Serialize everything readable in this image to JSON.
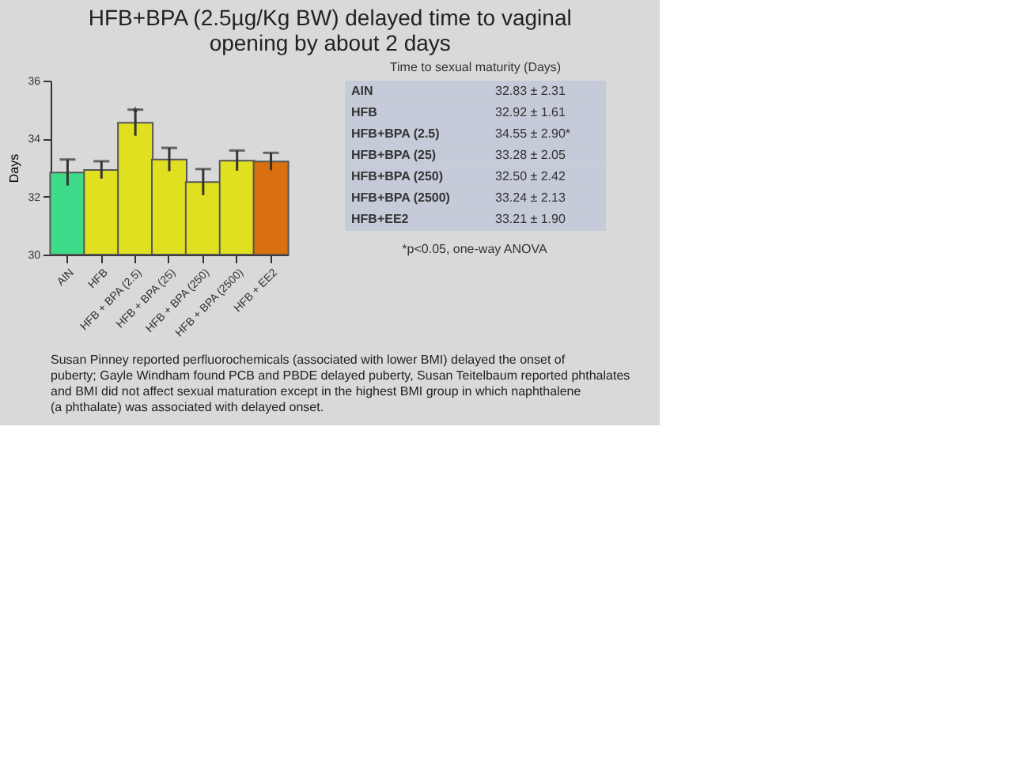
{
  "chart_data": [
    {
      "type": "bar",
      "title": "HFB+BPA (2.5µg/Kg BW) delayed time to vaginal opening by about 2 days",
      "ylabel": "Days",
      "categories": [
        "AIN",
        "HFB",
        "HFB + BPA (2.5)",
        "HFB + BPA (25)",
        "HFB + BPA (250)",
        "HFB + BPA (2500)",
        "HFB + EE2"
      ],
      "values": [
        32.83,
        32.92,
        34.55,
        33.28,
        32.5,
        33.24,
        33.21
      ],
      "colors": [
        "#3edc8a",
        "#e0e020",
        "#e0e020",
        "#e0e020",
        "#e0e020",
        "#e0e020",
        "#d9700f"
      ],
      "errors": [
        0.45,
        0.3,
        0.45,
        0.4,
        0.45,
        0.35,
        0.3
      ],
      "ylim": [
        30,
        36
      ],
      "yticks": [
        30,
        32,
        34,
        36
      ],
      "grid": false,
      "annotations": [
        {
          "text": "*",
          "x": "HFB + BPA (2.5)",
          "y": 35.0
        },
        "Susan Pinney reported perfluorochemicals (associated with lower BMI) delayed the onset of puberty; Gayle Windham found PCB and PBDE delayed puberty, Susan Teitelbaum reported phthalates and BMI did not affect sexual maturation except in the highest BMI group  in which naphthalene (a phthalate) was associated with delayed onset."
      ]
    },
    {
      "type": "other",
      "title": "Time to sexual maturity (Days)",
      "annotations": [
        "AIN",
        "32.83 ± 2.31",
        "HFB",
        "32.92 ± 1.61",
        "HFB+BPA (2.5)",
        "34.55 ± 2.90*",
        "HFB+BPA (25)",
        "33.28 ± 2.05",
        "HFB+BPA (250)",
        "32.50 ± 2.42",
        "HFB+BPA (2500)",
        "33.24 ± 2.13",
        "HFB+EE2",
        "33.21 ± 1.90",
        "*p<0.05, one-way ANOVA"
      ]
    }
  ]
}
